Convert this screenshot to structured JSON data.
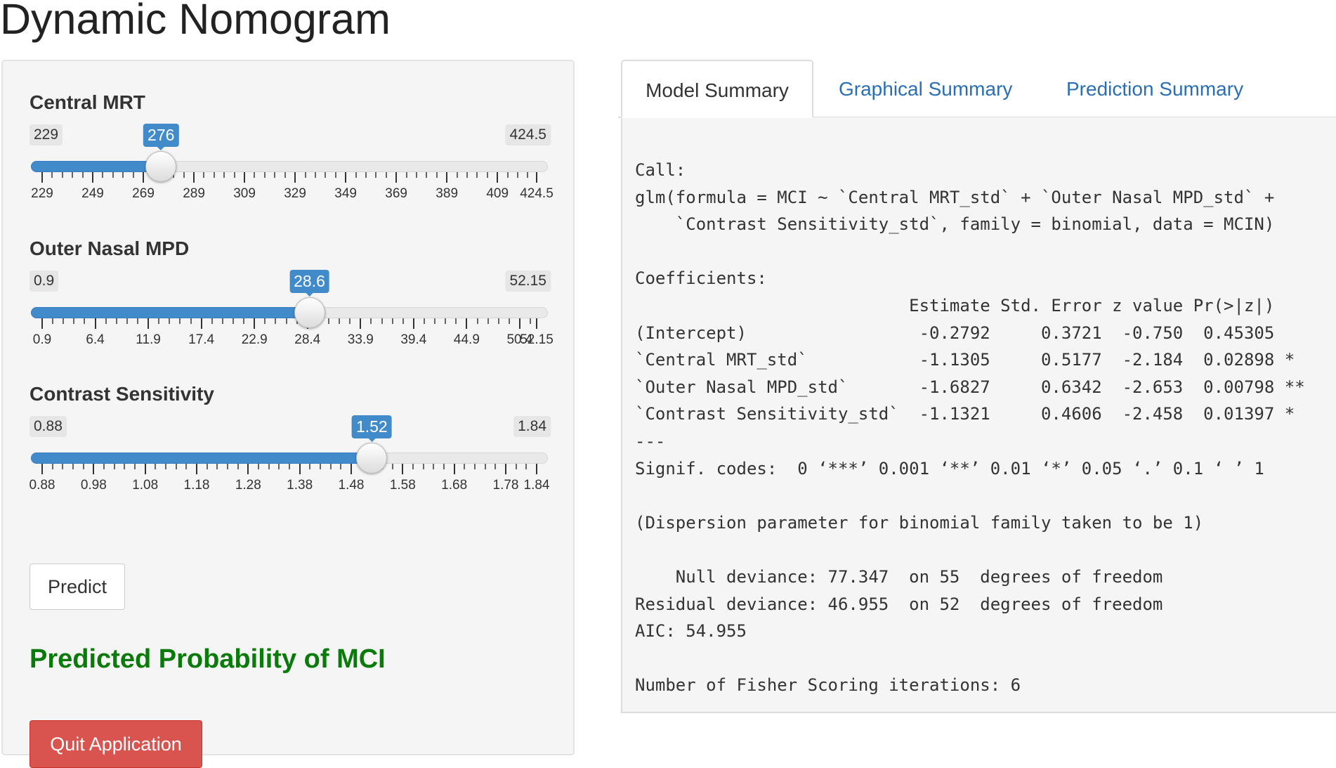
{
  "page": {
    "title": "Dynamic Nomogram"
  },
  "sidebar": {
    "sliders": [
      {
        "label": "Central MRT",
        "min": 229,
        "max": 424.5,
        "value": 276,
        "min_label": "229",
        "max_label": "424.5",
        "value_label": "276",
        "ticks": [
          "229",
          "249",
          "269",
          "289",
          "309",
          "329",
          "349",
          "369",
          "389",
          "409",
          "424.5"
        ],
        "tick_values": [
          229,
          249,
          269,
          289,
          309,
          329,
          349,
          369,
          389,
          409,
          424.5
        ]
      },
      {
        "label": "Outer Nasal MPD",
        "min": 0.9,
        "max": 52.15,
        "value": 28.6,
        "min_label": "0.9",
        "max_label": "52.15",
        "value_label": "28.6",
        "ticks": [
          "0.9",
          "6.4",
          "11.9",
          "17.4",
          "22.9",
          "28.4",
          "33.9",
          "39.4",
          "44.9",
          "50.4",
          "52.15"
        ],
        "tick_values": [
          0.9,
          6.4,
          11.9,
          17.4,
          22.9,
          28.4,
          33.9,
          39.4,
          44.9,
          50.4,
          52.15
        ]
      },
      {
        "label": "Contrast Sensitivity",
        "min": 0.88,
        "max": 1.84,
        "value": 1.52,
        "min_label": "0.88",
        "max_label": "1.84",
        "value_label": "1.52",
        "ticks": [
          "0.88",
          "0.98",
          "1.08",
          "1.18",
          "1.28",
          "1.38",
          "1.48",
          "1.58",
          "1.68",
          "1.78",
          "1.84"
        ],
        "tick_values": [
          0.88,
          0.98,
          1.08,
          1.18,
          1.28,
          1.38,
          1.48,
          1.58,
          1.68,
          1.78,
          1.84
        ]
      }
    ],
    "predict_label": "Predict",
    "prob_heading": "Predicted Probability of MCI",
    "quit_label": "Quit Application"
  },
  "tabs": {
    "items": [
      "Model Summary",
      "Graphical Summary",
      "Prediction Summary"
    ],
    "active": "Model Summary"
  },
  "output": {
    "lines": [
      "Call:",
      "glm(formula = MCI ~ `Central MRT_std` + `Outer Nasal MPD_std` +",
      "    `Contrast Sensitivity_std`, family = binomial, data = MCIN)",
      "",
      "Coefficients:",
      "                           Estimate Std. Error z value Pr(>|z|)",
      "(Intercept)                 -0.2792     0.3721  -0.750  0.45305",
      "`Central MRT_std`           -1.1305     0.5177  -2.184  0.02898 *",
      "`Outer Nasal MPD_std`       -1.6827     0.6342  -2.653  0.00798 **",
      "`Contrast Sensitivity_std`  -1.1321     0.4606  -2.458  0.01397 *",
      "---",
      "Signif. codes:  0 ‘***’ 0.001 ‘**’ 0.01 ‘*’ 0.05 ‘.’ 0.1 ‘ ’ 1",
      "",
      "(Dispersion parameter for binomial family taken to be 1)",
      "",
      "    Null deviance: 77.347  on 55  degrees of freedom",
      "Residual deviance: 46.955  on 52  degrees of freedom",
      "AIC: 54.955",
      "",
      "Number of Fisher Scoring iterations: 6"
    ]
  },
  "colors": {
    "accent": "#428bca",
    "heading_green": "#0a7a0a",
    "danger": "#d9534f",
    "link": "#2a6fb5"
  }
}
